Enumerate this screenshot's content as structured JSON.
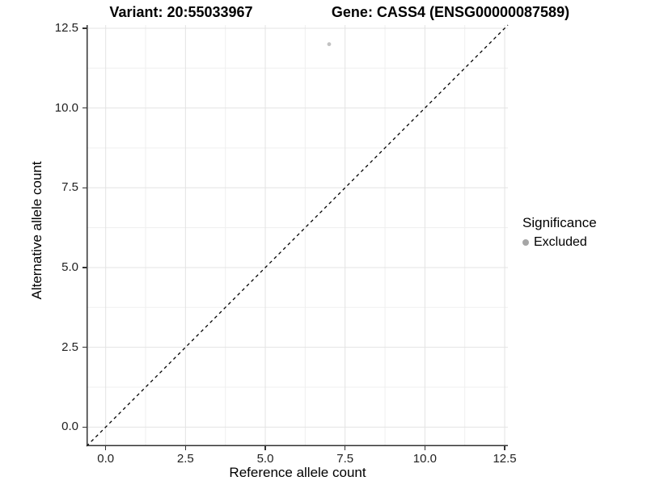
{
  "chart_data": {
    "type": "scatter",
    "titles": [
      {
        "id": "variant",
        "text": "Variant: 20:55033967"
      },
      {
        "id": "gene",
        "text": "Gene: CASS4 (ENSG00000087589)"
      }
    ],
    "xlabel": "Reference allele count",
    "ylabel": "Alternative allele count",
    "xlim": [
      -0.6,
      12.6
    ],
    "ylim": [
      -0.6,
      12.6
    ],
    "x_major_ticks": {
      "values": [
        0,
        2.5,
        5,
        7.5,
        10,
        12.5
      ],
      "labels": [
        "0.0",
        "2.5",
        "5.0",
        "7.5",
        "10.0",
        "12.5"
      ]
    },
    "y_major_ticks": {
      "values": [
        0,
        2.5,
        5,
        7.5,
        10,
        12.5
      ],
      "labels": [
        "0.0",
        "2.5",
        "5.0",
        "7.5",
        "10.0",
        "12.5"
      ]
    },
    "minor_tick_values": [
      1.25,
      3.75,
      6.25,
      8.75,
      11.25
    ],
    "grid": {
      "major": true,
      "minor": true,
      "major_color": "#e3e3e3",
      "minor_color": "#efefef",
      "panel_background": "#ffffff"
    },
    "axis": {
      "line_color": "#333333",
      "tick_color": "#333333",
      "tick_label_color": "#1f1f1f"
    },
    "reference_line": {
      "slope": 1,
      "intercept": 0,
      "style": "dashed",
      "color": "#000000"
    },
    "series": [
      {
        "name": "Excluded",
        "color": "#c2c2c2",
        "point_radius": 2.4,
        "points": [
          {
            "x": 7,
            "y": 12
          }
        ]
      }
    ],
    "legend": {
      "position": "right",
      "title": "Significance",
      "entries": [
        {
          "label": "Excluded",
          "color": "#a6a6a6"
        }
      ]
    }
  }
}
